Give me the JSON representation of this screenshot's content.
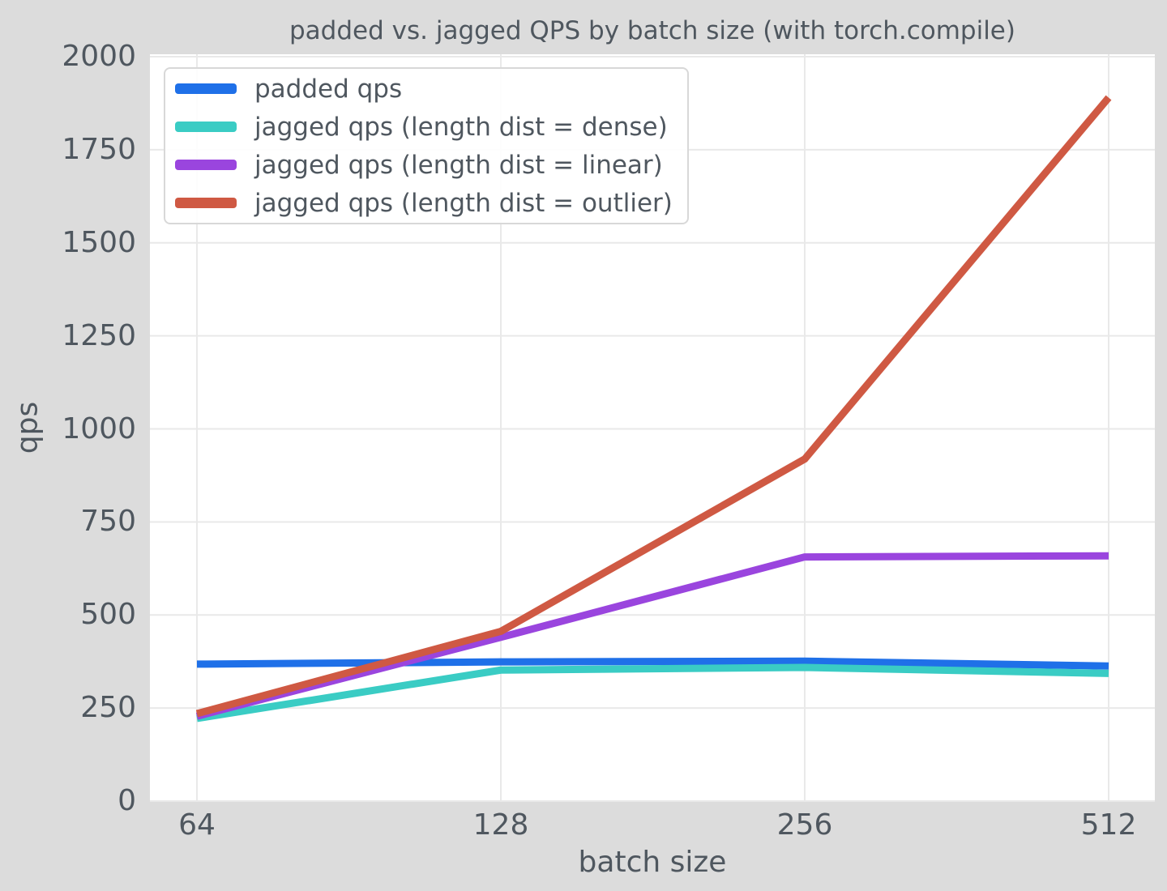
{
  "chart_data": {
    "type": "line",
    "title": "padded vs. jagged QPS by batch size (with torch.compile)",
    "xlabel": "batch size",
    "ylabel": "qps",
    "x": [
      64,
      128,
      256,
      512
    ],
    "x_scale": "log2",
    "x_tick_labels": [
      "64",
      "128",
      "256",
      "512"
    ],
    "y_ticks": [
      0,
      250,
      500,
      750,
      1000,
      1250,
      1500,
      1750,
      2000
    ],
    "ylim": [
      0,
      2000
    ],
    "grid": true,
    "legend_position": "upper-left",
    "series": [
      {
        "name": "padded qps",
        "color": "#1f70e8",
        "values": [
          368,
          374,
          376,
          363
        ]
      },
      {
        "name": "jagged qps (length dist = dense)",
        "color": "#3accc4",
        "values": [
          222,
          352,
          359,
          343
        ]
      },
      {
        "name": "jagged qps (length dist = linear)",
        "color": "#9a45de",
        "values": [
          228,
          440,
          656,
          659
        ]
      },
      {
        "name": "jagged qps (length dist = outlier)",
        "color": "#cf5943",
        "values": [
          235,
          456,
          919,
          1890
        ]
      }
    ],
    "theme": {
      "figure_bg": "#dcdcdc",
      "plot_bg": "#ffffff",
      "grid_color": "#e9e9e9",
      "text_color": "#4f575f",
      "legend_border": "#d8d8d8"
    }
  }
}
